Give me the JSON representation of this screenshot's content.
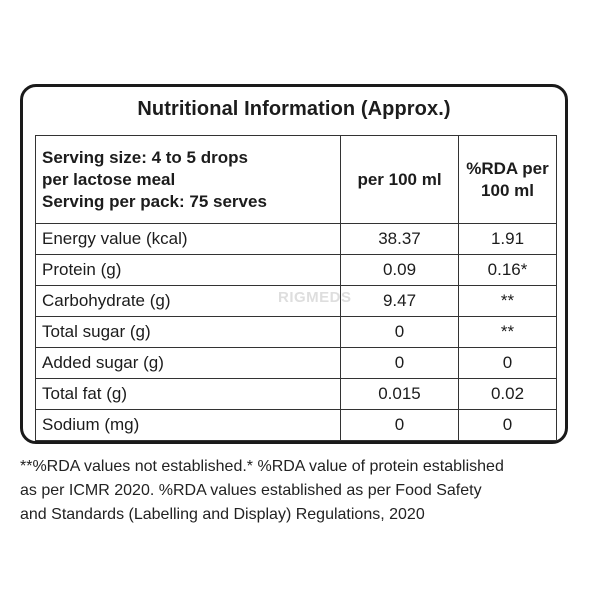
{
  "panel": {
    "title": "Nutritional Information (Approx.)"
  },
  "table": {
    "header": {
      "serving_line1": "Serving size: 4 to 5 drops",
      "serving_line2": "per lactose meal",
      "serving_line3": "Serving per pack: 75 serves",
      "col_per100": "per 100 ml",
      "col_rda_line1": "%RDA per",
      "col_rda_line2": "100 ml"
    },
    "rows": [
      {
        "label": "Energy value (kcal)",
        "per100": "38.37",
        "rda": "1.91"
      },
      {
        "label": "Protein (g)",
        "per100": "0.09",
        "rda": "0.16*"
      },
      {
        "label": "Carbohydrate (g)",
        "per100": "9.47",
        "rda": "**"
      },
      {
        "label": "Total sugar (g)",
        "per100": "0",
        "rda": "**"
      },
      {
        "label": "Added sugar (g)",
        "per100": "0",
        "rda": "0"
      },
      {
        "label": "Total fat (g)",
        "per100": "0.015",
        "rda": "0.02"
      },
      {
        "label": "Sodium (mg)",
        "per100": "0",
        "rda": "0"
      }
    ]
  },
  "watermark": "RIGMEDS",
  "footnote": {
    "line1": "**%RDA values not established.* %RDA value of protein established",
    "line2": "as per ICMR 2020. %RDA values established as per Food Safety",
    "line3": "and Standards (Labelling and Display) Regulations, 2020"
  }
}
